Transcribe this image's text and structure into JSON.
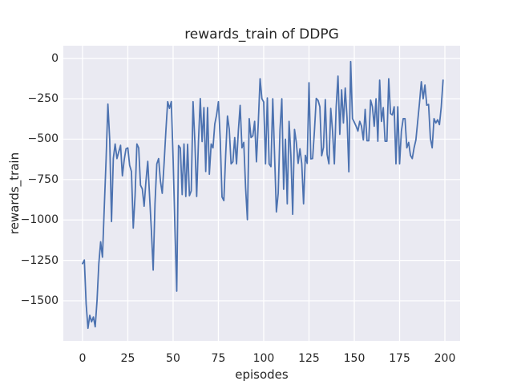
{
  "title": "rewards_train of DDPG",
  "chart_data": {
    "type": "line",
    "title": "rewards_train of DDPG",
    "xlabel": "episodes",
    "ylabel": "rewards_train",
    "x_ticks": [
      {
        "label": "0",
        "value": 0
      },
      {
        "label": "25",
        "value": 25
      },
      {
        "label": "50",
        "value": 50
      },
      {
        "label": "75",
        "value": 75
      },
      {
        "label": "100",
        "value": 100
      },
      {
        "label": "125",
        "value": 125
      },
      {
        "label": "150",
        "value": 150
      },
      {
        "label": "175",
        "value": 175
      },
      {
        "label": "200",
        "value": 200
      }
    ],
    "y_ticks": [
      {
        "label": "0",
        "value": 0
      },
      {
        "label": "−250",
        "value": -250
      },
      {
        "label": "−500",
        "value": -500
      },
      {
        "label": "−750",
        "value": -750
      },
      {
        "label": "−1000",
        "value": -1000
      },
      {
        "label": "−1250",
        "value": -1250
      },
      {
        "label": "−1500",
        "value": -1500
      }
    ],
    "xlim": [
      -10.6,
      208.4
    ],
    "ylim": [
      -1748,
      78
    ],
    "grid": true,
    "legend": null,
    "style": {
      "line_color": "#4C72B0",
      "line_width": 1.8,
      "plot_bg": "#EAEAF2",
      "grid_color": "#FFFFFF",
      "text_color": "#262626"
    },
    "series": [
      {
        "name": "rewards_train",
        "x_is_index": true,
        "values": [
          -1270,
          -1248,
          -1520,
          -1670,
          -1590,
          -1630,
          -1600,
          -1661,
          -1500,
          -1270,
          -1135,
          -1230,
          -924,
          -628,
          -283,
          -500,
          -1010,
          -620,
          -530,
          -620,
          -578,
          -538,
          -727,
          -628,
          -560,
          -554,
          -662,
          -700,
          -1050,
          -850,
          -530,
          -554,
          -785,
          -808,
          -915,
          -760,
          -637,
          -850,
          -1063,
          -1310,
          -900,
          -653,
          -620,
          -760,
          -835,
          -653,
          -450,
          -268,
          -310,
          -268,
          -620,
          -1050,
          -1440,
          -539,
          -555,
          -843,
          -530,
          -855,
          -532,
          -850,
          -820,
          -268,
          -515,
          -855,
          -510,
          -249,
          -515,
          -305,
          -700,
          -305,
          -717,
          -530,
          -554,
          -406,
          -350,
          -268,
          -500,
          -858,
          -880,
          -600,
          -357,
          -440,
          -653,
          -640,
          -490,
          -653,
          -450,
          -291,
          -554,
          -520,
          -800,
          -998,
          -373,
          -490,
          -480,
          -390,
          -640,
          -400,
          -126,
          -250,
          -270,
          -653,
          -245,
          -653,
          -670,
          -250,
          -600,
          -950,
          -835,
          -440,
          -250,
          -810,
          -500,
          -900,
          -390,
          -600,
          -965,
          -440,
          -520,
          -650,
          -560,
          -650,
          -900,
          -600,
          -650,
          -151,
          -622,
          -620,
          -450,
          -248,
          -260,
          -300,
          -603,
          -550,
          -255,
          -595,
          -653,
          -310,
          -450,
          -653,
          -300,
          -110,
          -470,
          -195,
          -400,
          -184,
          -370,
          -702,
          -20,
          -373,
          -395,
          -420,
          -450,
          -390,
          -420,
          -505,
          -316,
          -510,
          -510,
          -258,
          -300,
          -420,
          -250,
          -513,
          -135,
          -390,
          -305,
          -513,
          -513,
          -126,
          -342,
          -350,
          -300,
          -653,
          -300,
          -653,
          -450,
          -373,
          -373,
          -554,
          -520,
          -600,
          -620,
          -554,
          -505,
          -390,
          -274,
          -145,
          -250,
          -165,
          -290,
          -285,
          -495,
          -554,
          -373,
          -400,
          -380,
          -410,
          -300,
          -135
        ]
      }
    ]
  }
}
